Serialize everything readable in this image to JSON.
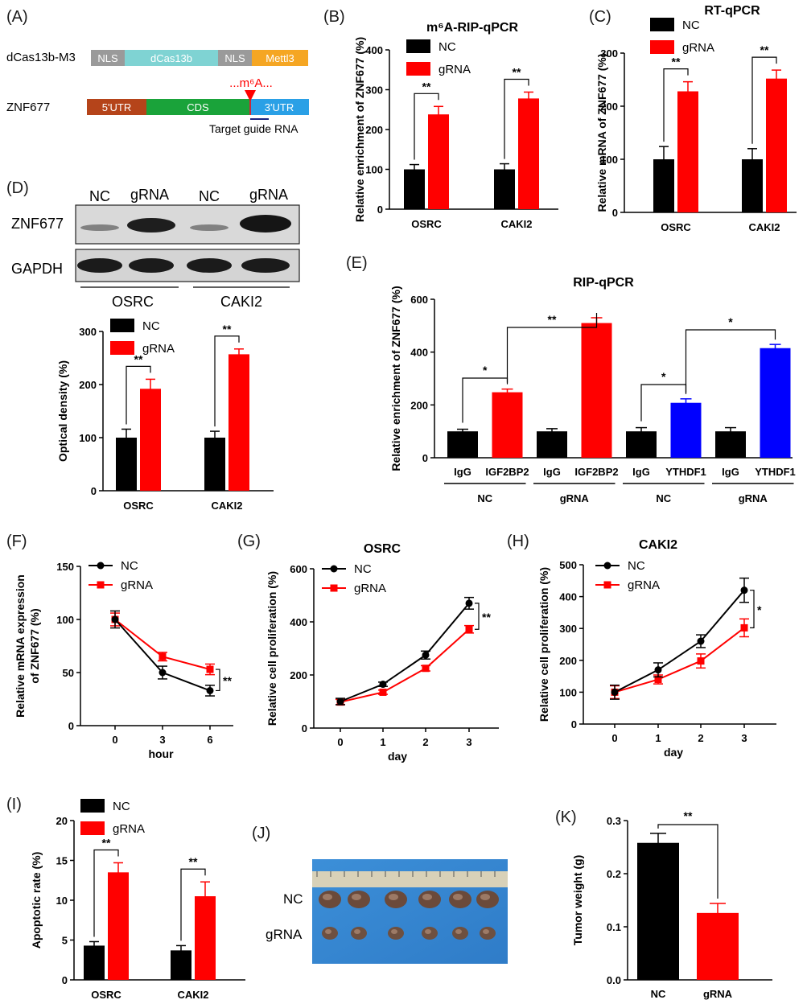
{
  "colors": {
    "nc": "#000000",
    "grna": "#ff0000",
    "ythdf1": "#0000ff",
    "nls": "#9a9a9a",
    "dcas13b": "#7fd3d3",
    "mettl3": "#f5a623",
    "utr5": "#b5441a",
    "cds": "#1aa33a",
    "utr3": "#2aa0e6"
  },
  "panel_A": {
    "label": "(A)",
    "construct_name": "dCas13b-M3",
    "construct_blocks": [
      "NLS",
      "dCas13b",
      "NLS",
      "Mettl3"
    ],
    "gene_name": "ZNF677",
    "gene_blocks": [
      "5'UTR",
      "CDS",
      "3'UTR"
    ],
    "site_label": "...m⁶A...",
    "guide_label": "Target guide RNA"
  },
  "panel_D_blot": {
    "label": "(D)",
    "lanes": [
      "NC",
      "gRNA",
      "NC",
      "gRNA"
    ],
    "rows": [
      "ZNF677",
      "GAPDH"
    ],
    "groups": [
      "OSRC",
      "CAKI2"
    ]
  },
  "panel_J": {
    "label": "(J)",
    "rows": [
      "NC",
      "gRNA"
    ]
  },
  "chart_data": [
    {
      "id": "B",
      "label": "(B)",
      "type": "bar",
      "title": "m⁶A-RIP-qPCR",
      "ylabel": "Relative enrichment of ZNF677 (%)",
      "xlabel": "",
      "categories": [
        "OSRC",
        "CAKI2"
      ],
      "ylim": [
        0,
        400
      ],
      "yticks": [
        "0",
        "100",
        "200",
        "300",
        "400"
      ],
      "legend_position": "top-left",
      "series": [
        {
          "name": "NC",
          "values": [
            100,
            100
          ],
          "errors": [
            12,
            14
          ]
        },
        {
          "name": "gRNA",
          "values": [
            238,
            278
          ],
          "errors": [
            20,
            16
          ]
        }
      ],
      "significance": [
        "**",
        "**"
      ]
    },
    {
      "id": "C",
      "label": "(C)",
      "type": "bar",
      "title": "RT-qPCR",
      "ylabel": "Relative mRNA of ZNF677 (%)",
      "xlabel": "",
      "categories": [
        "OSRC",
        "CAKI2"
      ],
      "ylim": [
        0,
        300
      ],
      "yticks": [
        "0",
        "100",
        "200",
        "300"
      ],
      "legend_position": "top-left",
      "series": [
        {
          "name": "NC",
          "values": [
            100,
            100
          ],
          "errors": [
            24,
            20
          ]
        },
        {
          "name": "gRNA",
          "values": [
            228,
            252
          ],
          "errors": [
            18,
            16
          ]
        }
      ],
      "significance": [
        "**",
        "**"
      ]
    },
    {
      "id": "D",
      "label": "",
      "type": "bar",
      "title": "",
      "ylabel": "Optical density (%)",
      "xlabel": "",
      "categories": [
        "OSRC",
        "CAKI2"
      ],
      "ylim": [
        0,
        300
      ],
      "yticks": [
        "0",
        "100",
        "200",
        "300"
      ],
      "legend_position": "top-left",
      "series": [
        {
          "name": "NC",
          "values": [
            100,
            100
          ],
          "errors": [
            16,
            12
          ]
        },
        {
          "name": "gRNA",
          "values": [
            192,
            257
          ],
          "errors": [
            18,
            10
          ]
        }
      ],
      "significance": [
        "**",
        "**"
      ]
    },
    {
      "id": "E",
      "label": "(E)",
      "type": "bar",
      "title": "RIP-qPCR",
      "ylabel": "Relative enrichment of ZNF677 (%)",
      "xlabel": "",
      "categories": [
        "IgG",
        "IGF2BP2",
        "IgG",
        "IGF2BP2",
        "IgG",
        "YTHDF1",
        "IgG",
        "YTHDF1"
      ],
      "groups": [
        "NC",
        "gRNA",
        "NC",
        "gRNA"
      ],
      "values": [
        100,
        248,
        100,
        510,
        100,
        208,
        100,
        415
      ],
      "errors": [
        8,
        12,
        10,
        20,
        14,
        15,
        14,
        14
      ],
      "bar_colors": [
        "nc",
        "grna",
        "nc",
        "grna",
        "nc",
        "ythdf1",
        "nc",
        "ythdf1"
      ],
      "ylim": [
        0,
        600
      ],
      "yticks": [
        "0",
        "200",
        "400",
        "600"
      ],
      "significance": [
        {
          "from": 0,
          "to": 1,
          "label": "*"
        },
        {
          "from": 1,
          "to": 3,
          "label": "**"
        },
        {
          "from": 4,
          "to": 5,
          "label": "*"
        },
        {
          "from": 5,
          "to": 7,
          "label": "*"
        }
      ]
    },
    {
      "id": "F",
      "label": "(F)",
      "type": "line",
      "title": "",
      "ylabel": "Relative mRNA expression of ZNF677 (%)",
      "xlabel": "hour",
      "x": [
        0,
        3,
        6
      ],
      "xticks": [
        "0",
        "3",
        "6"
      ],
      "ylim": [
        0,
        150
      ],
      "yticks": [
        "0",
        "50",
        "100",
        "150"
      ],
      "legend_position": "top-left",
      "series": [
        {
          "name": "NC",
          "values": [
            100,
            50,
            33
          ],
          "errors": [
            8,
            6,
            5
          ]
        },
        {
          "name": "gRNA",
          "values": [
            100,
            65,
            53
          ],
          "errors": [
            6,
            4,
            5
          ]
        }
      ],
      "significance": [
        "**"
      ]
    },
    {
      "id": "G",
      "label": "(G)",
      "type": "line",
      "title": "OSRC",
      "ylabel": "Relative cell proliferation (%)",
      "xlabel": "day",
      "x": [
        0,
        1,
        2,
        3
      ],
      "xticks": [
        "0",
        "1",
        "2",
        "3"
      ],
      "ylim": [
        0,
        600
      ],
      "yticks": [
        "0",
        "200",
        "400",
        "600"
      ],
      "legend_position": "top-left",
      "series": [
        {
          "name": "NC",
          "values": [
            100,
            165,
            275,
            470
          ],
          "errors": [
            12,
            8,
            15,
            22
          ]
        },
        {
          "name": "gRNA",
          "values": [
            98,
            135,
            225,
            372
          ],
          "errors": [
            10,
            8,
            10,
            14
          ]
        }
      ],
      "significance": [
        "**"
      ]
    },
    {
      "id": "H",
      "label": "(H)",
      "type": "line",
      "title": "CAKI2",
      "ylabel": "Relative cell proliferation (%)",
      "xlabel": "day",
      "x": [
        0,
        1,
        2,
        3
      ],
      "xticks": [
        "0",
        "1",
        "2",
        "3"
      ],
      "ylim": [
        0,
        500
      ],
      "yticks": [
        "0",
        "100",
        "200",
        "300",
        "400",
        "500"
      ],
      "legend_position": "top-left",
      "series": [
        {
          "name": "NC",
          "values": [
            100,
            170,
            260,
            420
          ],
          "errors": [
            22,
            22,
            20,
            38
          ]
        },
        {
          "name": "gRNA",
          "values": [
            100,
            140,
            198,
            302
          ],
          "errors": [
            20,
            14,
            22,
            28
          ]
        }
      ],
      "significance": [
        "*"
      ]
    },
    {
      "id": "I",
      "label": "(I)",
      "type": "bar",
      "title": "",
      "ylabel": "Apoptotic rate (%)",
      "xlabel": "",
      "categories": [
        "OSRC",
        "CAKI2"
      ],
      "ylim": [
        0,
        20
      ],
      "yticks": [
        "0",
        "5",
        "10",
        "15",
        "20"
      ],
      "legend_position": "top-left",
      "series": [
        {
          "name": "NC",
          "values": [
            4.3,
            3.7
          ],
          "errors": [
            0.5,
            0.6
          ]
        },
        {
          "name": "gRNA",
          "values": [
            13.5,
            10.5
          ],
          "errors": [
            1.2,
            1.8
          ]
        }
      ],
      "significance": [
        "**",
        "**"
      ]
    },
    {
      "id": "K",
      "label": "(K)",
      "type": "bar",
      "title": "",
      "ylabel": "Tumor weight (g)",
      "xlabel": "",
      "categories": [
        "NC",
        "gRNA"
      ],
      "values": [
        0.258,
        0.126
      ],
      "errors": [
        0.018,
        0.018
      ],
      "bar_colors": [
        "nc",
        "grna"
      ],
      "ylim": [
        0,
        0.3
      ],
      "yticks": [
        "0.0",
        "0.1",
        "0.2",
        "0.3"
      ],
      "significance": [
        "**"
      ]
    }
  ]
}
